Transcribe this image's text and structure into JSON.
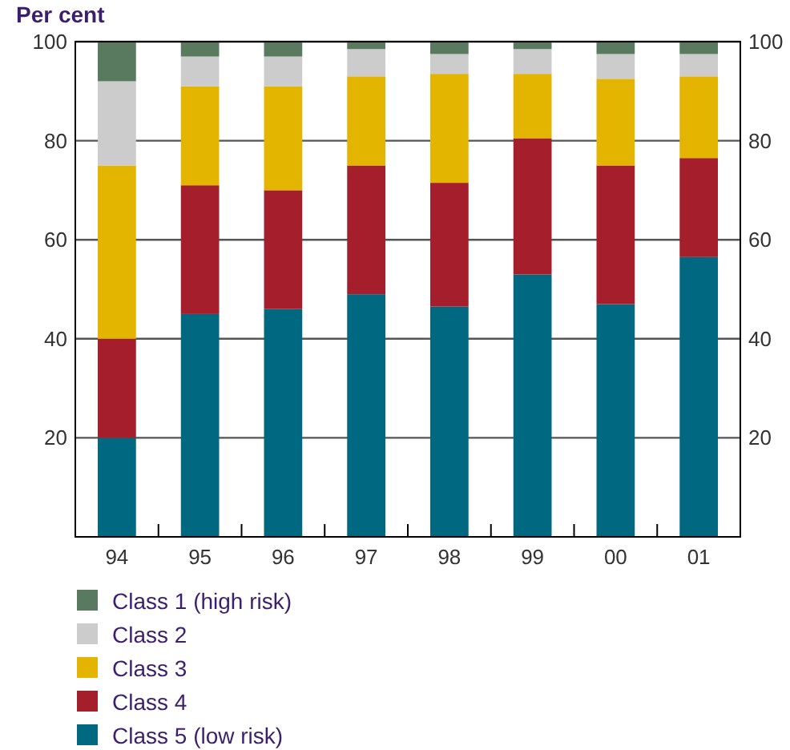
{
  "chart_data": {
    "type": "bar",
    "stacked": true,
    "ylabel": "Per cent",
    "categories": [
      "94",
      "95",
      "96",
      "97",
      "98",
      "99",
      "00",
      "01"
    ],
    "series": [
      {
        "name": "Class 5 (low risk)",
        "color": "#006880",
        "values": [
          20,
          45,
          46,
          49,
          46.5,
          53,
          47,
          56.5
        ]
      },
      {
        "name": "Class 4",
        "color": "#a51e2b",
        "values": [
          20,
          26,
          24,
          26,
          25,
          27.5,
          28,
          20
        ]
      },
      {
        "name": "Class 3",
        "color": "#e3b400",
        "values": [
          35,
          20,
          21,
          18,
          22,
          13,
          17.5,
          16.5
        ]
      },
      {
        "name": "Class 2",
        "color": "#cccccc",
        "values": [
          17,
          6,
          6,
          5.5,
          4,
          5,
          5,
          4.5
        ]
      },
      {
        "name": "Class 1 (high risk)",
        "color": "#5a7a5f",
        "values": [
          8,
          3,
          3,
          1.5,
          2.5,
          1.5,
          2.5,
          2.5
        ]
      }
    ],
    "ylim": [
      0,
      100
    ],
    "yticks": [
      20,
      40,
      60,
      80,
      100
    ],
    "y2lim": [
      0,
      100
    ],
    "y2ticks": [
      20,
      40,
      60,
      80,
      100
    ],
    "grid": "y",
    "legend": "bottom"
  }
}
